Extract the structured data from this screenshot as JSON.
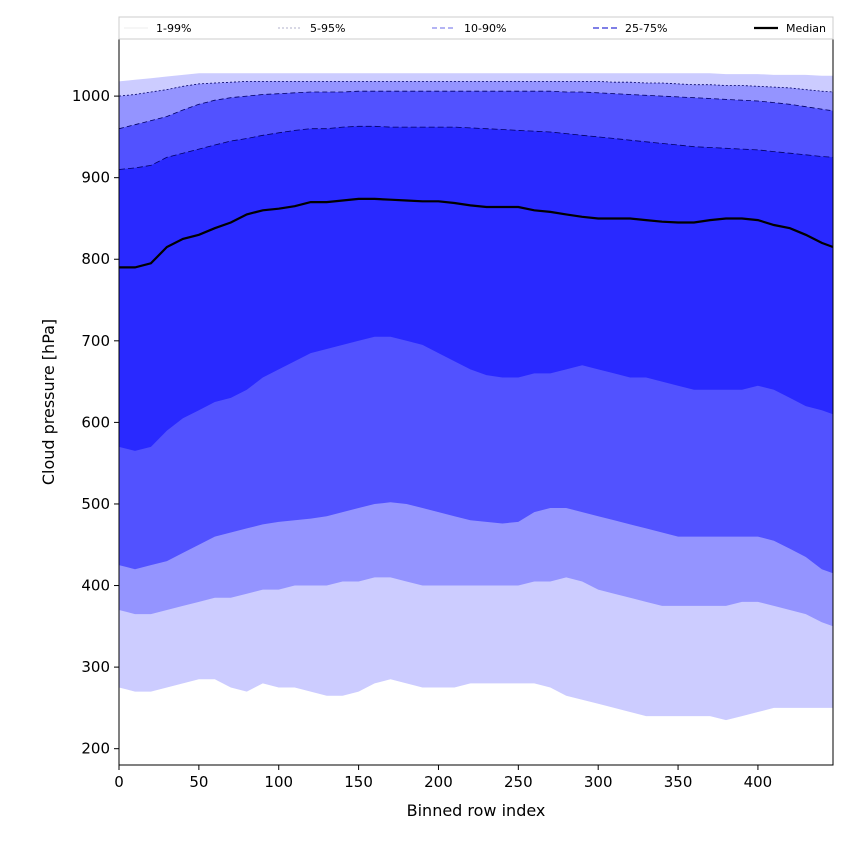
{
  "chart_data": {
    "type": "area",
    "xlabel": "Binned row index",
    "ylabel": "Cloud pressure [hPa]",
    "xlim": [
      0,
      447
    ],
    "ylim": [
      180,
      1070
    ],
    "xticks": [
      0,
      50,
      100,
      150,
      200,
      250,
      300,
      350,
      400
    ],
    "yticks": [
      200,
      300,
      400,
      500,
      600,
      700,
      800,
      900,
      1000
    ],
    "grid": false,
    "legend_position": "top",
    "x": [
      0,
      10,
      20,
      30,
      40,
      50,
      60,
      70,
      80,
      90,
      100,
      110,
      120,
      130,
      140,
      150,
      160,
      170,
      180,
      190,
      200,
      210,
      220,
      230,
      240,
      250,
      260,
      270,
      280,
      290,
      300,
      310,
      320,
      330,
      340,
      350,
      360,
      370,
      380,
      390,
      400,
      410,
      420,
      430,
      440,
      447
    ],
    "series": [
      {
        "name": "1-99%",
        "color": "#ccccff",
        "lower": [
          275,
          270,
          270,
          275,
          280,
          285,
          285,
          275,
          270,
          280,
          275,
          275,
          270,
          265,
          265,
          270,
          280,
          285,
          280,
          275,
          275,
          275,
          280,
          280,
          280,
          280,
          280,
          275,
          265,
          260,
          255,
          250,
          245,
          240,
          240,
          240,
          240,
          240,
          235,
          240,
          245,
          250,
          250,
          250,
          250,
          250
        ],
        "upper": [
          1018,
          1020,
          1022,
          1024,
          1026,
          1028,
          1028,
          1028,
          1028,
          1028,
          1028,
          1028,
          1028,
          1028,
          1028,
          1028,
          1028,
          1028,
          1028,
          1028,
          1028,
          1028,
          1028,
          1028,
          1028,
          1028,
          1028,
          1028,
          1028,
          1028,
          1028,
          1028,
          1028,
          1028,
          1028,
          1028,
          1028,
          1028,
          1027,
          1027,
          1027,
          1026,
          1026,
          1026,
          1025,
          1025
        ]
      },
      {
        "name": "5-95%",
        "color": "#9494ff",
        "lower": [
          370,
          365,
          365,
          370,
          375,
          380,
          385,
          385,
          390,
          395,
          395,
          400,
          400,
          400,
          405,
          405,
          410,
          410,
          405,
          400,
          400,
          400,
          400,
          400,
          400,
          400,
          405,
          405,
          410,
          405,
          395,
          390,
          385,
          380,
          375,
          375,
          375,
          375,
          375,
          380,
          380,
          375,
          370,
          365,
          355,
          350
        ],
        "upper": [
          1000,
          1002,
          1005,
          1008,
          1012,
          1015,
          1016,
          1017,
          1018,
          1018,
          1018,
          1018,
          1018,
          1018,
          1018,
          1018,
          1018,
          1018,
          1018,
          1018,
          1018,
          1018,
          1018,
          1018,
          1018,
          1018,
          1018,
          1018,
          1018,
          1018,
          1018,
          1017,
          1017,
          1016,
          1016,
          1015,
          1014,
          1014,
          1013,
          1013,
          1012,
          1011,
          1010,
          1008,
          1006,
          1005
        ]
      },
      {
        "name": "10-90%",
        "color": "#5252ff",
        "lower": [
          425,
          420,
          425,
          430,
          440,
          450,
          460,
          465,
          470,
          475,
          478,
          480,
          482,
          485,
          490,
          495,
          500,
          502,
          500,
          495,
          490,
          485,
          480,
          478,
          476,
          478,
          490,
          495,
          495,
          490,
          485,
          480,
          475,
          470,
          465,
          460,
          460,
          460,
          460,
          460,
          460,
          455,
          445,
          435,
          420,
          415
        ],
        "upper": [
          960,
          965,
          970,
          975,
          983,
          990,
          995,
          998,
          1000,
          1002,
          1003,
          1004,
          1005,
          1005,
          1005,
          1006,
          1006,
          1006,
          1006,
          1006,
          1006,
          1006,
          1006,
          1006,
          1006,
          1006,
          1006,
          1006,
          1005,
          1005,
          1004,
          1003,
          1002,
          1001,
          1000,
          999,
          998,
          997,
          996,
          995,
          994,
          992,
          990,
          987,
          984,
          982
        ]
      },
      {
        "name": "25-75%",
        "color": "#2929ff",
        "lower": [
          570,
          565,
          570,
          590,
          605,
          615,
          625,
          630,
          640,
          655,
          665,
          675,
          685,
          690,
          695,
          700,
          705,
          705,
          700,
          695,
          685,
          675,
          665,
          658,
          655,
          655,
          660,
          660,
          665,
          670,
          665,
          660,
          655,
          655,
          650,
          645,
          640,
          640,
          640,
          640,
          645,
          640,
          630,
          620,
          615,
          610
        ],
        "upper": [
          910,
          912,
          915,
          925,
          930,
          935,
          940,
          945,
          948,
          952,
          955,
          958,
          960,
          960,
          962,
          963,
          963,
          962,
          962,
          962,
          962,
          962,
          961,
          960,
          959,
          958,
          957,
          956,
          954,
          952,
          950,
          948,
          946,
          944,
          942,
          940,
          938,
          937,
          936,
          935,
          934,
          932,
          930,
          928,
          926,
          925
        ]
      },
      {
        "name": "Median",
        "color": "#000000",
        "values": [
          790,
          790,
          795,
          815,
          825,
          830,
          838,
          845,
          855,
          860,
          862,
          865,
          870,
          870,
          872,
          874,
          874,
          873,
          872,
          871,
          871,
          869,
          866,
          864,
          864,
          864,
          860,
          858,
          855,
          852,
          850,
          850,
          850,
          848,
          846,
          845,
          845,
          848,
          850,
          850,
          848,
          842,
          838,
          830,
          820,
          815
        ]
      }
    ]
  }
}
